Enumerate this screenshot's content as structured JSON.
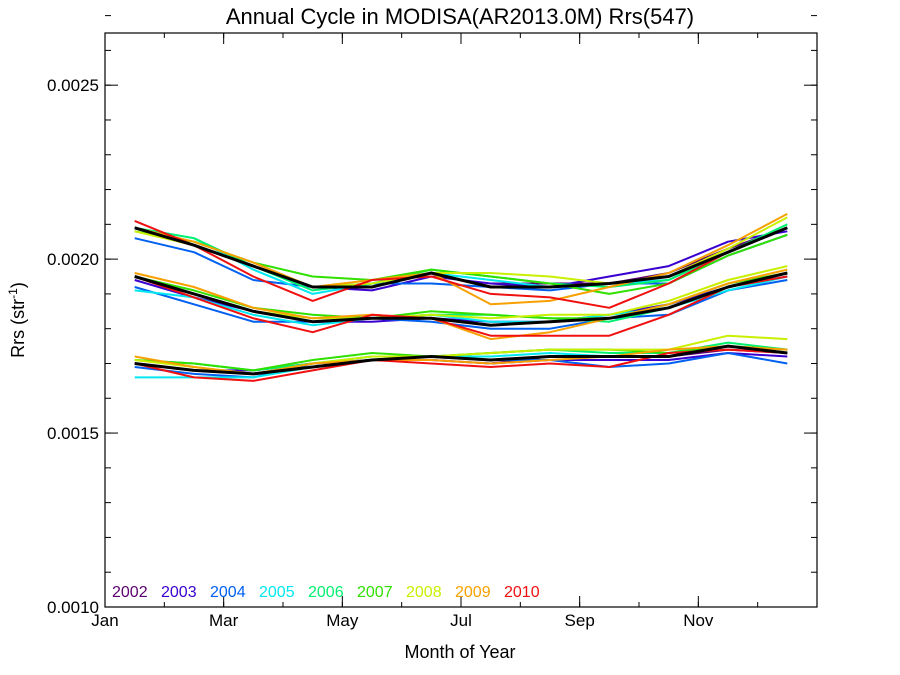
{
  "chart_data": {
    "type": "line",
    "title": "Annual Cycle in MODISA(AR2013.0M) Rrs(547)",
    "xlabel": "Month of Year",
    "ylabel_main": "Rrs (str",
    "ylabel_sup": "-1",
    "ylabel_close": ")",
    "xlim": [
      1,
      13
    ],
    "ylim": [
      0.001,
      0.00265
    ],
    "x_ticks": [
      {
        "value": 1,
        "label": "Jan"
      },
      {
        "value": 3,
        "label": "Mar"
      },
      {
        "value": 5,
        "label": "May"
      },
      {
        "value": 7,
        "label": "Jul"
      },
      {
        "value": 9,
        "label": "Sep"
      },
      {
        "value": 11,
        "label": "Nov"
      }
    ],
    "x_minor_step": 1,
    "y_ticks": [
      {
        "value": 0.001,
        "label": "0.0010"
      },
      {
        "value": 0.0015,
        "label": "0.0015"
      },
      {
        "value": 0.002,
        "label": "0.0020"
      },
      {
        "value": 0.0025,
        "label": "0.0025"
      }
    ],
    "y_minor_step": 0.0001,
    "legend_position": "bottom-left",
    "x": [
      1.5,
      2.5,
      3.5,
      4.5,
      5.5,
      6.5,
      7.5,
      8.5,
      9.5,
      10.5,
      11.5,
      12.5
    ],
    "years": [
      {
        "name": "2002",
        "color": "#5c0070",
        "groups": [
          {
            "x": [
              7.5,
              8.5,
              9.5,
              10.5,
              11.5,
              12.5
            ],
            "values": [
              0.00193,
              0.00193,
              0.00193,
              0.00196,
              0.00203,
              0.00209
            ]
          },
          {
            "x": [
              7.5,
              8.5,
              9.5,
              10.5,
              11.5,
              12.5
            ],
            "values": [
              0.00181,
              0.00182,
              0.00183,
              0.00186,
              0.00192,
              0.00196
            ]
          },
          {
            "x": [
              7.5,
              8.5,
              9.5,
              10.5,
              11.5,
              12.5
            ],
            "values": [
              0.0017,
              0.00172,
              0.00172,
              0.00172,
              0.00174,
              0.00173
            ]
          }
        ]
      },
      {
        "name": "2003",
        "color": "#3a00d0",
        "groups": [
          {
            "x": [
              1.5,
              2.5,
              3.5,
              4.5,
              5.5,
              6.5,
              7.5,
              8.5,
              9.5,
              10.5,
              11.5,
              12.5
            ],
            "values": [
              0.00209,
              0.00204,
              0.00198,
              0.00192,
              0.00191,
              0.00195,
              0.00193,
              0.00192,
              0.00195,
              0.00198,
              0.00205,
              0.00208
            ]
          },
          {
            "x": [
              1.5,
              2.5,
              3.5,
              4.5,
              5.5,
              6.5,
              7.5,
              8.5,
              9.5,
              10.5,
              11.5,
              12.5
            ],
            "values": [
              0.00194,
              0.00189,
              0.00185,
              0.00182,
              0.00182,
              0.00183,
              0.00182,
              0.00182,
              0.00184,
              0.00187,
              0.00192,
              0.00195
            ]
          },
          {
            "x": [
              1.5,
              2.5,
              3.5,
              4.5,
              5.5,
              6.5,
              7.5,
              8.5,
              9.5,
              10.5,
              11.5,
              12.5
            ],
            "values": [
              0.0017,
              0.00168,
              0.00168,
              0.0017,
              0.00171,
              0.00171,
              0.0017,
              0.00171,
              0.00171,
              0.00171,
              0.00173,
              0.00172
            ]
          }
        ]
      },
      {
        "name": "2004",
        "color": "#0060f0",
        "groups": [
          {
            "x": [
              1.5,
              2.5,
              3.5,
              4.5,
              5.5,
              6.5,
              7.5,
              8.5,
              9.5,
              10.5,
              11.5,
              12.5
            ],
            "values": [
              0.00206,
              0.00202,
              0.00194,
              0.00192,
              0.00193,
              0.00193,
              0.00192,
              0.00191,
              0.00193,
              0.00193,
              0.00201,
              0.00207
            ]
          },
          {
            "x": [
              1.5,
              2.5,
              3.5,
              4.5,
              5.5,
              6.5,
              7.5,
              8.5,
              9.5,
              10.5,
              11.5,
              12.5
            ],
            "values": [
              0.00192,
              0.00187,
              0.00182,
              0.00182,
              0.00183,
              0.00182,
              0.0018,
              0.0018,
              0.00183,
              0.00184,
              0.00191,
              0.00194
            ]
          },
          {
            "x": [
              1.5,
              2.5,
              3.5,
              4.5,
              5.5,
              6.5,
              7.5,
              8.5,
              9.5,
              10.5,
              11.5,
              12.5
            ],
            "values": [
              0.00169,
              0.00167,
              0.00166,
              0.0017,
              0.00171,
              0.00172,
              0.00171,
              0.00171,
              0.00169,
              0.0017,
              0.00173,
              0.0017
            ]
          }
        ]
      },
      {
        "name": "2005",
        "color": "#00e8f0",
        "groups": [
          {
            "x": [
              1.5,
              2.5,
              3.5,
              4.5,
              5.5,
              6.5,
              7.5,
              8.5,
              9.5,
              10.5,
              11.5,
              12.5
            ],
            "values": [
              0.00209,
              0.00206,
              0.00197,
              0.0019,
              0.00193,
              0.00196,
              0.00194,
              0.00192,
              0.00193,
              0.00194,
              0.00202,
              0.00209
            ]
          },
          {
            "x": [
              1.5,
              2.5,
              3.5,
              4.5,
              5.5,
              6.5,
              7.5,
              8.5,
              9.5,
              10.5,
              11.5,
              12.5
            ],
            "values": [
              0.00191,
              0.00189,
              0.00184,
              0.00181,
              0.00183,
              0.00184,
              0.00182,
              0.00182,
              0.00184,
              0.00186,
              0.00191,
              0.00195
            ]
          },
          {
            "x": [
              1.5,
              2.5,
              3.5,
              4.5,
              5.5,
              6.5,
              7.5,
              8.5,
              9.5,
              10.5,
              11.5,
              12.5
            ],
            "values": [
              0.00166,
              0.00166,
              0.00166,
              0.00169,
              0.00171,
              0.00172,
              0.00172,
              0.00173,
              0.00172,
              0.00172,
              0.00175,
              0.00173
            ]
          }
        ]
      },
      {
        "name": "2006",
        "color": "#00f070",
        "groups": [
          {
            "x": [
              1.5,
              2.5,
              3.5,
              4.5,
              5.5,
              6.5,
              7.5,
              8.5,
              9.5,
              10.5,
              11.5,
              12.5
            ],
            "values": [
              0.00209,
              0.00206,
              0.00198,
              0.00191,
              0.00193,
              0.00197,
              0.00195,
              0.00193,
              0.00192,
              0.00194,
              0.00202,
              0.0021
            ]
          },
          {
            "x": [
              1.5,
              2.5,
              3.5,
              4.5,
              5.5,
              6.5,
              7.5,
              8.5,
              9.5,
              10.5,
              11.5,
              12.5
            ],
            "values": [
              0.00195,
              0.0019,
              0.00185,
              0.00182,
              0.00183,
              0.00184,
              0.00184,
              0.00183,
              0.00182,
              0.00186,
              0.00192,
              0.00196
            ]
          },
          {
            "x": [
              1.5,
              2.5,
              3.5,
              4.5,
              5.5,
              6.5,
              7.5,
              8.5,
              9.5,
              10.5,
              11.5,
              12.5
            ],
            "values": [
              0.00171,
              0.0017,
              0.00168,
              0.0017,
              0.00172,
              0.00172,
              0.00173,
              0.00174,
              0.00173,
              0.00173,
              0.00176,
              0.00174
            ]
          }
        ]
      },
      {
        "name": "2007",
        "color": "#30e000",
        "groups": [
          {
            "x": [
              1.5,
              2.5,
              3.5,
              4.5,
              5.5,
              6.5,
              7.5,
              8.5,
              9.5,
              10.5,
              11.5,
              12.5
            ],
            "values": [
              0.00208,
              0.00205,
              0.00199,
              0.00195,
              0.00194,
              0.00197,
              0.00195,
              0.00193,
              0.0019,
              0.00193,
              0.00201,
              0.00207
            ]
          },
          {
            "x": [
              1.5,
              2.5,
              3.5,
              4.5,
              5.5,
              6.5,
              7.5,
              8.5,
              9.5,
              10.5,
              11.5,
              12.5
            ],
            "values": [
              0.00195,
              0.00191,
              0.00186,
              0.00184,
              0.00183,
              0.00185,
              0.00184,
              0.00183,
              0.00183,
              0.00187,
              0.00193,
              0.00196
            ]
          },
          {
            "x": [
              1.5,
              2.5,
              3.5,
              4.5,
              5.5,
              6.5,
              7.5,
              8.5,
              9.5,
              10.5,
              11.5,
              12.5
            ],
            "values": [
              0.00171,
              0.0017,
              0.00168,
              0.00171,
              0.00173,
              0.00172,
              0.00173,
              0.00174,
              0.00174,
              0.00173,
              0.00175,
              0.00174
            ]
          }
        ]
      },
      {
        "name": "2008",
        "color": "#c8f000",
        "groups": [
          {
            "x": [
              1.5,
              2.5,
              3.5,
              4.5,
              5.5,
              6.5,
              7.5,
              8.5,
              9.5,
              10.5,
              11.5,
              12.5
            ],
            "values": [
              0.00208,
              0.00204,
              0.00198,
              0.00192,
              0.00193,
              0.00196,
              0.00196,
              0.00195,
              0.00193,
              0.00195,
              0.00203,
              0.00212
            ]
          },
          {
            "x": [
              1.5,
              2.5,
              3.5,
              4.5,
              5.5,
              6.5,
              7.5,
              8.5,
              9.5,
              10.5,
              11.5,
              12.5
            ],
            "values": [
              0.00195,
              0.0019,
              0.00185,
              0.00183,
              0.00183,
              0.00184,
              0.00183,
              0.00184,
              0.00184,
              0.00188,
              0.00194,
              0.00198
            ]
          },
          {
            "x": [
              1.5,
              2.5,
              3.5,
              4.5,
              5.5,
              6.5,
              7.5,
              8.5,
              9.5,
              10.5,
              11.5,
              12.5
            ],
            "values": [
              0.00171,
              0.00169,
              0.00167,
              0.0017,
              0.00172,
              0.00172,
              0.00173,
              0.00174,
              0.00174,
              0.00174,
              0.00178,
              0.00177
            ]
          }
        ]
      },
      {
        "name": "2009",
        "color": "#f8a000",
        "groups": [
          {
            "x": [
              1.5,
              2.5,
              3.5,
              4.5,
              5.5,
              6.5,
              7.5,
              8.5,
              9.5,
              10.5,
              11.5,
              12.5
            ],
            "values": [
              0.00209,
              0.00205,
              0.00199,
              0.00192,
              0.00194,
              0.00196,
              0.00187,
              0.00188,
              0.00192,
              0.00196,
              0.00204,
              0.00213
            ]
          },
          {
            "x": [
              1.5,
              2.5,
              3.5,
              4.5,
              5.5,
              6.5,
              7.5,
              8.5,
              9.5,
              10.5,
              11.5,
              12.5
            ],
            "values": [
              0.00196,
              0.00192,
              0.00186,
              0.00183,
              0.00184,
              0.00183,
              0.00177,
              0.00179,
              0.00183,
              0.00187,
              0.00193,
              0.00197
            ]
          },
          {
            "x": [
              1.5,
              2.5,
              3.5,
              4.5,
              5.5,
              6.5,
              7.5,
              8.5,
              9.5,
              10.5,
              11.5,
              12.5
            ],
            "values": [
              0.00172,
              0.00169,
              0.00167,
              0.0017,
              0.00171,
              0.00171,
              0.0017,
              0.00171,
              0.00172,
              0.00174,
              0.00175,
              0.00174
            ]
          }
        ]
      },
      {
        "name": "2010",
        "color": "#f01010",
        "groups": [
          {
            "x": [
              1.5,
              2.5,
              3.5,
              4.5,
              5.5,
              6.5,
              7.5,
              8.5,
              9.5,
              10.5,
              11.5,
              12.5
            ],
            "values": [
              0.00211,
              0.00204,
              0.00195,
              0.00188,
              0.00194,
              0.00195,
              0.0019,
              0.00189,
              0.00186,
              0.00193,
              0.00202,
              0.00209
            ]
          },
          {
            "x": [
              1.5,
              2.5,
              3.5,
              4.5,
              5.5,
              6.5,
              7.5,
              8.5,
              9.5,
              10.5,
              11.5,
              12.5
            ],
            "values": [
              0.00195,
              0.00189,
              0.00183,
              0.00179,
              0.00184,
              0.00183,
              0.00178,
              0.00178,
              0.00178,
              0.00184,
              0.00192,
              0.00195
            ]
          },
          {
            "x": [
              1.5,
              2.5,
              3.5,
              4.5,
              5.5,
              6.5,
              7.5,
              8.5,
              9.5,
              10.5,
              11.5,
              12.5
            ],
            "values": [
              0.0017,
              0.00166,
              0.00165,
              0.00168,
              0.00171,
              0.0017,
              0.00169,
              0.0017,
              0.00169,
              0.00173,
              0.00174,
              0.00173
            ]
          }
        ]
      }
    ],
    "mean_series": {
      "color": "#000000",
      "groups": [
        {
          "x": [
            1.5,
            2.5,
            3.5,
            4.5,
            5.5,
            6.5,
            7.5,
            8.5,
            9.5,
            10.5,
            11.5,
            12.5
          ],
          "values": [
            0.00209,
            0.00204,
            0.00198,
            0.00192,
            0.00192,
            0.00196,
            0.00192,
            0.00192,
            0.00193,
            0.00195,
            0.00202,
            0.00209
          ]
        },
        {
          "x": [
            1.5,
            2.5,
            3.5,
            4.5,
            5.5,
            6.5,
            7.5,
            8.5,
            9.5,
            10.5,
            11.5,
            12.5
          ],
          "values": [
            0.00195,
            0.0019,
            0.00185,
            0.00182,
            0.00183,
            0.00183,
            0.00181,
            0.00182,
            0.00183,
            0.00186,
            0.00192,
            0.00196
          ]
        },
        {
          "x": [
            1.5,
            2.5,
            3.5,
            4.5,
            5.5,
            6.5,
            7.5,
            8.5,
            9.5,
            10.5,
            11.5,
            12.5
          ],
          "values": [
            0.0017,
            0.00168,
            0.00167,
            0.00169,
            0.00171,
            0.00172,
            0.00171,
            0.00172,
            0.00172,
            0.00172,
            0.00175,
            0.00173
          ]
        }
      ]
    }
  }
}
